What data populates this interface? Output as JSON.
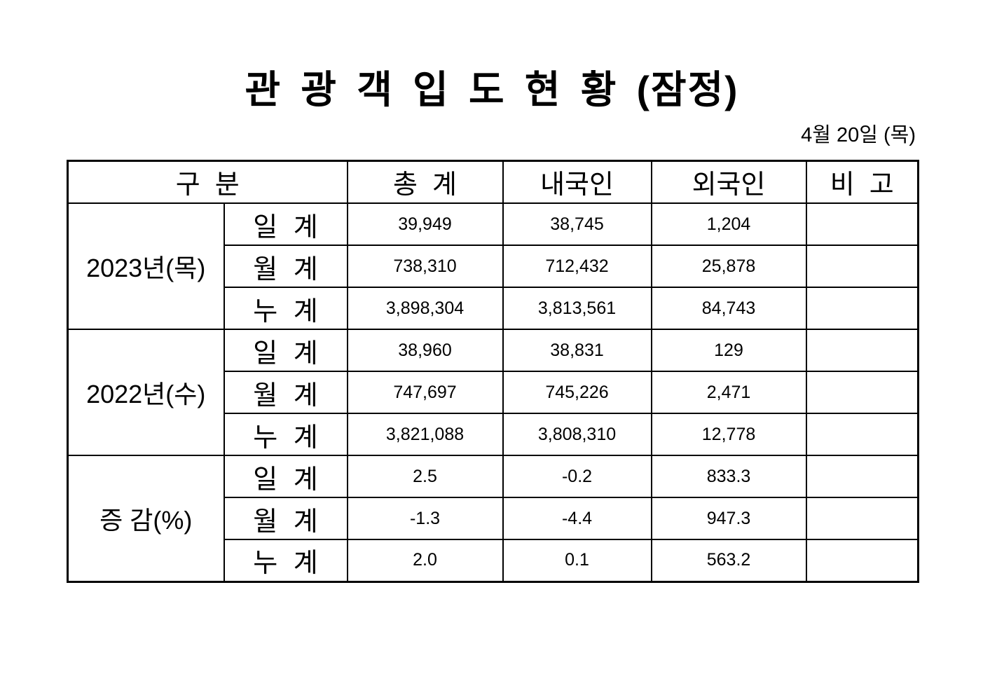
{
  "page": {
    "title": "관 광 객 입 도 현 황 (잠정)",
    "date": "4월 20일 (목)"
  },
  "table": {
    "headers": {
      "category": "구  분",
      "total": "총  계",
      "domestic": "내국인",
      "foreigner": "외국인",
      "remarks": "비  고"
    },
    "groups": [
      {
        "label": "2023년(목)",
        "rows": [
          {
            "label": "일 계",
            "total": "39,949",
            "domestic": "38,745",
            "foreigner": "1,204",
            "remarks": ""
          },
          {
            "label": "월 계",
            "total": "738,310",
            "domestic": "712,432",
            "foreigner": "25,878",
            "remarks": ""
          },
          {
            "label": "누 계",
            "total": "3,898,304",
            "domestic": "3,813,561",
            "foreigner": "84,743",
            "remarks": ""
          }
        ]
      },
      {
        "label": "2022년(수)",
        "rows": [
          {
            "label": "일 계",
            "total": "38,960",
            "domestic": "38,831",
            "foreigner": "129",
            "remarks": ""
          },
          {
            "label": "월 계",
            "total": "747,697",
            "domestic": "745,226",
            "foreigner": "2,471",
            "remarks": ""
          },
          {
            "label": "누 계",
            "total": "3,821,088",
            "domestic": "3,808,310",
            "foreigner": "12,778",
            "remarks": ""
          }
        ]
      },
      {
        "label": "증 감(%)",
        "rows": [
          {
            "label": "일 계",
            "total": "2.5",
            "domestic": "-0.2",
            "foreigner": "833.3",
            "remarks": ""
          },
          {
            "label": "월 계",
            "total": "-1.3",
            "domestic": "-4.4",
            "foreigner": "947.3",
            "remarks": ""
          },
          {
            "label": "누 계",
            "total": "2.0",
            "domestic": "0.1",
            "foreigner": "563.2",
            "remarks": ""
          }
        ]
      }
    ]
  }
}
